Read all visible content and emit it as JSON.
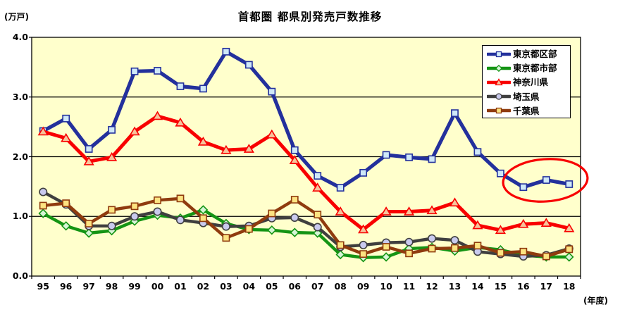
{
  "page": {
    "title_label": "首都圏 都県別発売戸数推移",
    "y_unit_label": "(万戸)",
    "x_unit_label": "(年度)"
  },
  "chart_data": {
    "type": "line",
    "title": "首都圏 都県別発売戸数推移",
    "ylabel": "(万戸)",
    "xlabel": "(年度)",
    "ylim": [
      0,
      4
    ],
    "ytick_labels": [
      "0.0",
      "1.0",
      "2.0",
      "3.0",
      "4.0"
    ],
    "grid": "horizontal",
    "plot_background": "#ffffcc",
    "legend_position": "upper-right-inside",
    "categories": [
      "95",
      "96",
      "97",
      "98",
      "99",
      "00",
      "01",
      "02",
      "03",
      "04",
      "05",
      "06",
      "07",
      "08",
      "09",
      "10",
      "11",
      "12",
      "13",
      "14",
      "15",
      "16",
      "17",
      "18"
    ],
    "series": [
      {
        "id": "tokyo-kubu",
        "name": "東京都区部",
        "color": "#23309c",
        "marker": "square",
        "marker_fill": "#cfe8f8",
        "line_width": 5.2,
        "values": [
          2.43,
          2.64,
          2.13,
          2.45,
          3.43,
          3.44,
          3.18,
          3.14,
          3.76,
          3.54,
          3.09,
          2.11,
          1.68,
          1.48,
          1.73,
          2.03,
          1.99,
          1.96,
          2.73,
          2.08,
          1.72,
          1.49,
          1.61,
          1.54
        ]
      },
      {
        "id": "tokyo-shibu",
        "name": "東京都市部",
        "color": "#149414",
        "marker": "diamond",
        "marker_fill": "#d6f5d6",
        "line_width": 4.4,
        "values": [
          1.05,
          0.84,
          0.72,
          0.76,
          0.92,
          1.02,
          0.97,
          1.11,
          0.88,
          0.78,
          0.77,
          0.73,
          0.72,
          0.36,
          0.31,
          0.32,
          0.46,
          0.48,
          0.42,
          0.48,
          0.44,
          0.35,
          0.32,
          0.32
        ]
      },
      {
        "id": "kanagawa",
        "name": "神奈川県",
        "color": "#f80000",
        "marker": "triangle",
        "marker_fill": "#f6c49c",
        "line_width": 5.0,
        "values": [
          2.42,
          2.31,
          1.92,
          1.99,
          2.42,
          2.68,
          2.57,
          2.25,
          2.11,
          2.13,
          2.37,
          1.94,
          1.48,
          1.08,
          0.78,
          1.08,
          1.08,
          1.1,
          1.23,
          0.85,
          0.77,
          0.87,
          0.89,
          0.8
        ]
      },
      {
        "id": "saitama",
        "name": "埼玉県",
        "color": "#3f3f3f",
        "marker": "circle",
        "marker_fill": "#c9caee",
        "line_width": 4.4,
        "values": [
          1.41,
          1.2,
          0.84,
          0.84,
          1.0,
          1.08,
          0.94,
          0.89,
          0.83,
          0.84,
          0.97,
          0.98,
          0.82,
          0.49,
          0.52,
          0.56,
          0.57,
          0.63,
          0.6,
          0.41,
          0.37,
          0.33,
          0.35,
          0.46
        ]
      },
      {
        "id": "chiba",
        "name": "千葉県",
        "color": "#8f3b0e",
        "marker": "square",
        "marker_fill": "#fde381",
        "line_width": 4.4,
        "values": [
          1.18,
          1.22,
          0.88,
          1.11,
          1.17,
          1.27,
          1.3,
          0.97,
          0.64,
          0.79,
          1.05,
          1.28,
          1.03,
          0.52,
          0.37,
          0.49,
          0.38,
          0.46,
          0.47,
          0.51,
          0.39,
          0.41,
          0.33,
          0.45
        ]
      }
    ],
    "annotation": {
      "type": "ellipse",
      "color": "#f80000",
      "around_years": [
        "16",
        "17",
        "18"
      ],
      "note": "red ellipse highlighting the last three points of 東京都区部"
    }
  }
}
